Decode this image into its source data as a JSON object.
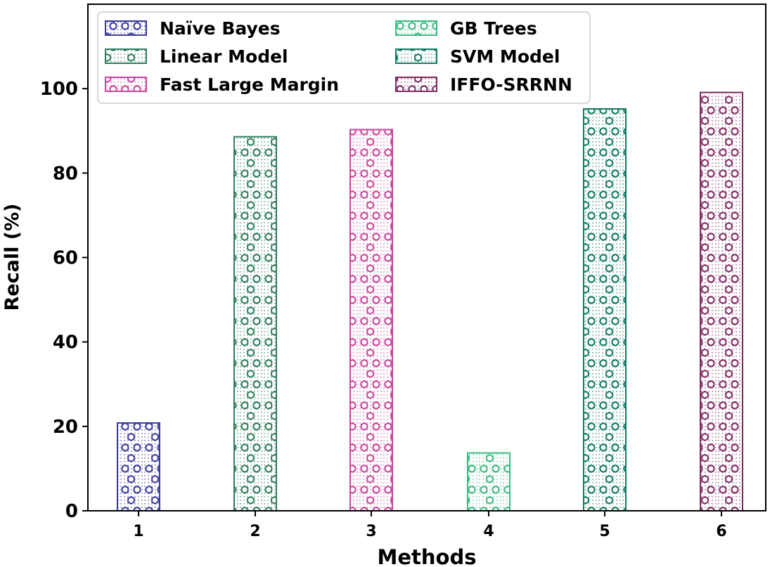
{
  "chart_data": {
    "type": "bar",
    "categories": [
      "1",
      "2",
      "3",
      "4",
      "5",
      "6"
    ],
    "series": [
      {
        "name": "Naïve Bayes",
        "x": "1",
        "value": 20.8,
        "color": "#3a3a9e"
      },
      {
        "name": "Linear Model",
        "x": "2",
        "value": 88.6,
        "color": "#2e7d5b"
      },
      {
        "name": "Fast Large Margin",
        "x": "3",
        "value": 90.3,
        "color": "#c8459c"
      },
      {
        "name": "GB Trees",
        "x": "4",
        "value": 13.7,
        "color": "#3cba80"
      },
      {
        "name": "SVM Model",
        "x": "5",
        "value": 95.2,
        "color": "#137a62"
      },
      {
        "name": "IFFO-SRRNN",
        "x": "6",
        "value": 99.1,
        "color": "#7e2a62"
      }
    ],
    "xlabel": "Methods",
    "ylabel": "Recall (%)",
    "ylim": [
      0,
      120
    ],
    "yticks": [
      0,
      20,
      40,
      60,
      80,
      100
    ],
    "legend_position": "top-left",
    "grid": false
  }
}
